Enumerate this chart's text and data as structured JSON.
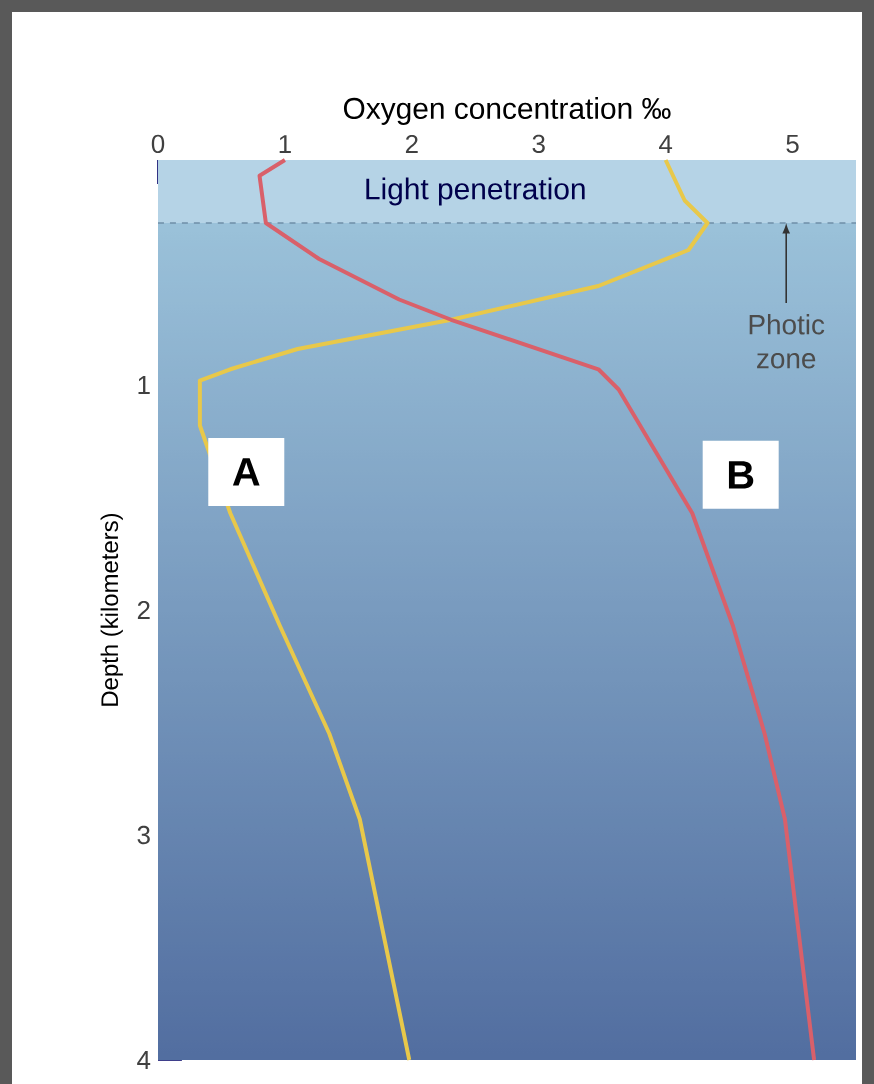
{
  "chart_data": {
    "type": "line",
    "xlabel": "Oxygen concentration ‰",
    "ylabel": "Depth (kilometers)",
    "xlim": [
      0,
      5.5
    ],
    "ylim": [
      4,
      0
    ],
    "xticks": [
      0,
      1,
      2,
      3,
      4,
      5
    ],
    "yticks": [
      1,
      2,
      3,
      4
    ],
    "grid": false,
    "marker": "none",
    "line_style": "solid",
    "series": [
      {
        "name": "A",
        "color": "#e8c84a",
        "x": [
          4,
          4.15,
          4.33,
          4.18,
          3.47,
          2.31,
          1.1,
          0.57,
          0.33,
          0.33,
          0.57,
          0.96,
          1.35,
          1.59,
          1.98
        ],
        "values": [
          0,
          0.18,
          0.28,
          0.4,
          0.56,
          0.71,
          0.84,
          0.93,
          0.98,
          1.18,
          1.57,
          2.07,
          2.55,
          2.93,
          4
        ]
      },
      {
        "name": "B",
        "color": "#d9606a",
        "x": [
          1,
          0.8,
          0.85,
          1.27,
          1.9,
          2.31,
          3.47,
          3.63,
          4.21,
          4.53,
          4.78,
          4.94,
          5.17
        ],
        "values": [
          0,
          0.07,
          0.28,
          0.44,
          0.62,
          0.71,
          0.93,
          1.02,
          1.57,
          2.07,
          2.55,
          2.93,
          4
        ]
      }
    ],
    "bands": [
      {
        "axis": "y",
        "from": 0,
        "to": 0.28,
        "label": "Light penetration",
        "color": "#b5d3e6"
      }
    ],
    "ref_lines": [
      {
        "axis": "y",
        "value": 0.28,
        "line_style": "dashed",
        "color": "#6f8fa8"
      }
    ],
    "annotations": [
      {
        "text": "Photic zone",
        "x": 4.95,
        "y": 0.28
      }
    ]
  }
}
